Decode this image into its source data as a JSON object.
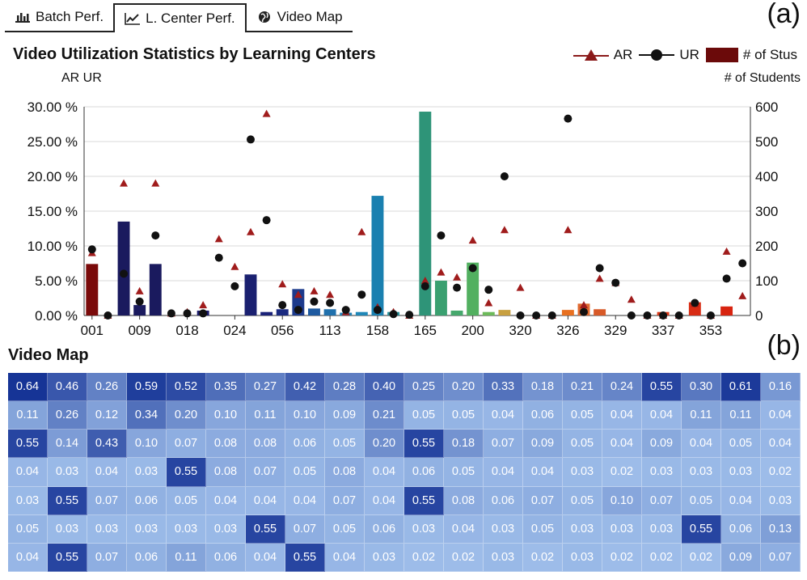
{
  "tabs": [
    {
      "label": "Batch Perf.",
      "icon": "bar-chart-icon",
      "active": false
    },
    {
      "label": "L. Center Perf.",
      "icon": "line-chart-icon",
      "active": true
    },
    {
      "label": "Video Map",
      "icon": "globe-icon",
      "active": false
    }
  ],
  "panel_labels": {
    "a": "(a)",
    "b": "(b)"
  },
  "chart_data": {
    "type": "bar",
    "title": "Video Utilization Statistics by Learning Centers",
    "left_axis_caption": "AR UR",
    "right_axis_caption": "# of Students",
    "legend": [
      {
        "name": "AR",
        "marker": "triangle-line",
        "color": "#8b1a1a"
      },
      {
        "name": "UR",
        "marker": "circle-line",
        "color": "#111111"
      },
      {
        "name": "# of Stus",
        "marker": "box",
        "color": "#6b0a0a"
      }
    ],
    "y_left": {
      "min": 0,
      "max": 30,
      "ticks": [
        "0.00 %",
        "5.00 %",
        "10.00 %",
        "15.00 %",
        "20.00 %",
        "25.00 %",
        "30.00 %"
      ]
    },
    "y_right": {
      "min": 0,
      "max": 600,
      "ticks": [
        "0",
        "100",
        "200",
        "300",
        "400",
        "500",
        "600"
      ]
    },
    "x_tick_labels": [
      "001",
      "009",
      "018",
      "024",
      "056",
      "113",
      "158",
      "165",
      "200",
      "320",
      "326",
      "329",
      "337",
      "353"
    ],
    "x_tick_positions": [
      0,
      3,
      6,
      9,
      12,
      15,
      18,
      21,
      24,
      27,
      30,
      33,
      36,
      39
    ],
    "category_count": 42,
    "grid": true,
    "students": [
      148,
      0,
      270,
      30,
      148,
      0,
      0,
      14,
      0,
      0,
      118,
      10,
      18,
      76,
      20,
      18,
      8,
      10,
      344,
      10,
      0,
      586,
      100,
      14,
      152,
      10,
      16,
      0,
      0,
      0,
      16,
      34,
      18,
      0,
      0,
      0,
      10,
      0,
      38,
      0,
      26,
      0
    ],
    "bar_colors": [
      "#7a0a0a",
      "#1a1a5e",
      "#1a1a5e",
      "#1a1a5e",
      "#1a1a5e",
      "#1a1a5e",
      "#1a1a5e",
      "#1a1a6a",
      "#1a1a6a",
      "#1a1a6a",
      "#1a2070",
      "#1a2278",
      "#1a2a80",
      "#1c3a8c",
      "#1e5aa0",
      "#2070ac",
      "#2080b4",
      "#2088b8",
      "#1a80b0",
      "#2a9098",
      "#2e9080",
      "#2e9478",
      "#3aa070",
      "#45a86c",
      "#52b060",
      "#6cba5a",
      "#c8a040",
      "#d8a030",
      "#d89028",
      "#e07a20",
      "#e87020",
      "#e06a30",
      "#d85a28",
      "#d85020",
      "#d84a1c",
      "#d84018",
      "#d83818",
      "#d83014",
      "#d82c14",
      "#d82810",
      "#d82410",
      "#c81a10"
    ],
    "AR": [
      9,
      0,
      19,
      3.5,
      19,
      0.3,
      0.5,
      1.5,
      11,
      7,
      12,
      29,
      4.5,
      3,
      3.5,
      3,
      0.5,
      12,
      1.2,
      0.5,
      0,
      5,
      6.2,
      5.5,
      10.8,
      1.8,
      12.3,
      4,
      0,
      0,
      12.3,
      1.5,
      5.3,
      4.7,
      2.3,
      0,
      0,
      0,
      1.7,
      0,
      9.2,
      2.8
    ],
    "UR": [
      9.5,
      0,
      6,
      2,
      11.5,
      0.3,
      0.3,
      0.3,
      8.3,
      4.2,
      25.3,
      13.7,
      1.5,
      0.8,
      2,
      1.8,
      0.8,
      3,
      0.8,
      0.2,
      0.1,
      4.2,
      11.5,
      4,
      6.8,
      3.7,
      20,
      0,
      0,
      0,
      28.3,
      0.5,
      6.8,
      4.7,
      0,
      0,
      0,
      0,
      1.8,
      0,
      5.3,
      7.5
    ]
  },
  "video_map": {
    "title": "Video Map",
    "rows": [
      [
        "0.64",
        "0.46",
        "0.26",
        "0.59",
        "0.52",
        "0.35",
        "0.27",
        "0.42",
        "0.28",
        "0.40",
        "0.25",
        "0.20",
        "0.33",
        "0.18",
        "0.21",
        "0.24",
        "0.55",
        "0.30",
        "0.61",
        "0.16"
      ],
      [
        "0.11",
        "0.26",
        "0.12",
        "0.34",
        "0.20",
        "0.10",
        "0.11",
        "0.10",
        "0.09",
        "0.21",
        "0.05",
        "0.05",
        "0.04",
        "0.06",
        "0.05",
        "0.04",
        "0.04",
        "0.11",
        "0.11",
        "0.04"
      ],
      [
        "0.55",
        "0.14",
        "0.43",
        "0.10",
        "0.07",
        "0.08",
        "0.08",
        "0.06",
        "0.05",
        "0.20",
        "0.55",
        "0.18",
        "0.07",
        "0.09",
        "0.05",
        "0.04",
        "0.09",
        "0.04",
        "0.05",
        "0.04"
      ],
      [
        "0.04",
        "0.03",
        "0.04",
        "0.03",
        "0.55",
        "0.08",
        "0.07",
        "0.05",
        "0.08",
        "0.04",
        "0.06",
        "0.05",
        "0.04",
        "0.04",
        "0.03",
        "0.02",
        "0.03",
        "0.03",
        "0.03",
        "0.02"
      ],
      [
        "0.03",
        "0.55",
        "0.07",
        "0.06",
        "0.05",
        "0.04",
        "0.04",
        "0.04",
        "0.07",
        "0.04",
        "0.55",
        "0.08",
        "0.06",
        "0.07",
        "0.05",
        "0.10",
        "0.07",
        "0.05",
        "0.04",
        "0.03"
      ],
      [
        "0.05",
        "0.03",
        "0.03",
        "0.03",
        "0.03",
        "0.03",
        "0.55",
        "0.07",
        "0.05",
        "0.06",
        "0.03",
        "0.04",
        "0.03",
        "0.05",
        "0.03",
        "0.03",
        "0.03",
        "0.55",
        "0.06",
        "0.13"
      ],
      [
        "0.04",
        "0.55",
        "0.07",
        "0.06",
        "0.11",
        "0.06",
        "0.04",
        "0.55",
        "0.04",
        "0.03",
        "0.02",
        "0.02",
        "0.03",
        "0.02",
        "0.03",
        "0.02",
        "0.02",
        "0.02",
        "0.09",
        "0.07"
      ]
    ]
  }
}
